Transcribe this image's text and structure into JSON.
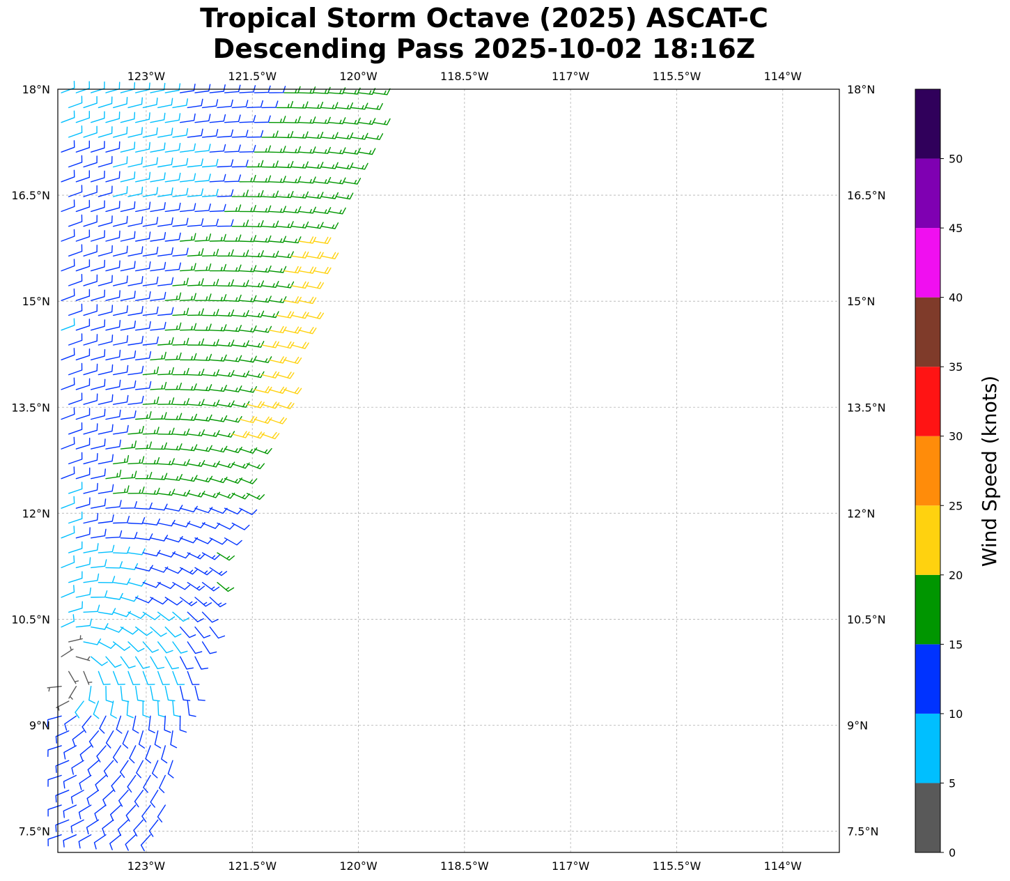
{
  "title": {
    "line1": "Tropical Storm Octave (2025) ASCAT-C",
    "line2": "Descending Pass 2025-10-02 18:16Z"
  },
  "chart_data": {
    "type": "wind-barb-map",
    "title": "Tropical Storm Octave (2025) ASCAT-C Descending Pass 2025-10-02 18:16Z",
    "lon_range": [
      -124.25,
      -113.2
    ],
    "lat_range": [
      7.2,
      18.0
    ],
    "lon_ticks": [
      {
        "value": -123.0,
        "label": "123°W"
      },
      {
        "value": -121.5,
        "label": "121.5°W"
      },
      {
        "value": -120.0,
        "label": "120°W"
      },
      {
        "value": -118.5,
        "label": "118.5°W"
      },
      {
        "value": -117.0,
        "label": "117°W"
      },
      {
        "value": -115.5,
        "label": "115.5°W"
      },
      {
        "value": -114.0,
        "label": "114°W"
      }
    ],
    "lat_ticks": [
      {
        "value": 18.0,
        "label": "18°N"
      },
      {
        "value": 16.5,
        "label": "16.5°N"
      },
      {
        "value": 15.0,
        "label": "15°N"
      },
      {
        "value": 13.5,
        "label": "13.5°N"
      },
      {
        "value": 12.0,
        "label": "12°N"
      },
      {
        "value": 10.5,
        "label": "10.5°N"
      },
      {
        "value": 9.0,
        "label": "9°N"
      },
      {
        "value": 7.5,
        "label": "7.5°N"
      }
    ],
    "grid": true,
    "colorbar": {
      "label": "Wind Speed (knots)",
      "tick_values": [
        0,
        5,
        10,
        15,
        20,
        25,
        30,
        35,
        40,
        45,
        50
      ],
      "tick_labels": [
        "0",
        "5",
        "10",
        "15",
        "20",
        "25",
        "30",
        "35",
        "40",
        "45",
        "50"
      ],
      "range": [
        0,
        55
      ],
      "bins": [
        {
          "min": 0,
          "max": 5,
          "color": "#595959"
        },
        {
          "min": 5,
          "max": 10,
          "color": "#00bfff"
        },
        {
          "min": 10,
          "max": 15,
          "color": "#0033ff"
        },
        {
          "min": 15,
          "max": 20,
          "color": "#009600"
        },
        {
          "min": 20,
          "max": 25,
          "color": "#ffd20f"
        },
        {
          "min": 25,
          "max": 30,
          "color": "#ff8c0a"
        },
        {
          "min": 30,
          "max": 35,
          "color": "#ff1414"
        },
        {
          "min": 35,
          "max": 40,
          "color": "#7f3b2a"
        },
        {
          "min": 40,
          "max": 45,
          "color": "#f00ff0"
        },
        {
          "min": 45,
          "max": 50,
          "color": "#7f00b2"
        },
        {
          "min": 50,
          "max": 55,
          "color": "#30005b"
        }
      ]
    },
    "swath": {
      "west_edge_lon": -124.25,
      "east_edge": [
        {
          "lat": 18.0,
          "lon": -119.6
        },
        {
          "lat": 17.0,
          "lon": -120.0
        },
        {
          "lat": 16.0,
          "lon": -120.4
        },
        {
          "lat": 15.0,
          "lon": -120.65
        },
        {
          "lat": 14.0,
          "lon": -120.95
        },
        {
          "lat": 13.0,
          "lon": -121.35
        },
        {
          "lat": 12.0,
          "lon": -121.6
        },
        {
          "lat": 11.0,
          "lon": -122.0
        },
        {
          "lat": 10.0,
          "lon": -122.15
        },
        {
          "lat": 9.0,
          "lon": -122.5
        },
        {
          "lat": 8.0,
          "lon": -122.65
        },
        {
          "lat": 7.2,
          "lon": -122.9
        }
      ]
    },
    "wind_field_summary": [
      {
        "region": "near-center calm",
        "lat": 9.7,
        "lon": -124.0,
        "speed_kt": 3
      },
      {
        "region": "eastern swath max",
        "lat": 14.2,
        "lon": -120.9,
        "speed_kt": 22
      },
      {
        "region": "eastern band",
        "lat": 15.5,
        "lon": -120.7,
        "speed_kt": 17
      },
      {
        "region": "western light winds",
        "lat": 10.8,
        "lon": -123.7,
        "speed_kt": 7
      },
      {
        "region": "southern band",
        "lat": 8.4,
        "lon": -123.3,
        "speed_kt": 12
      }
    ]
  }
}
